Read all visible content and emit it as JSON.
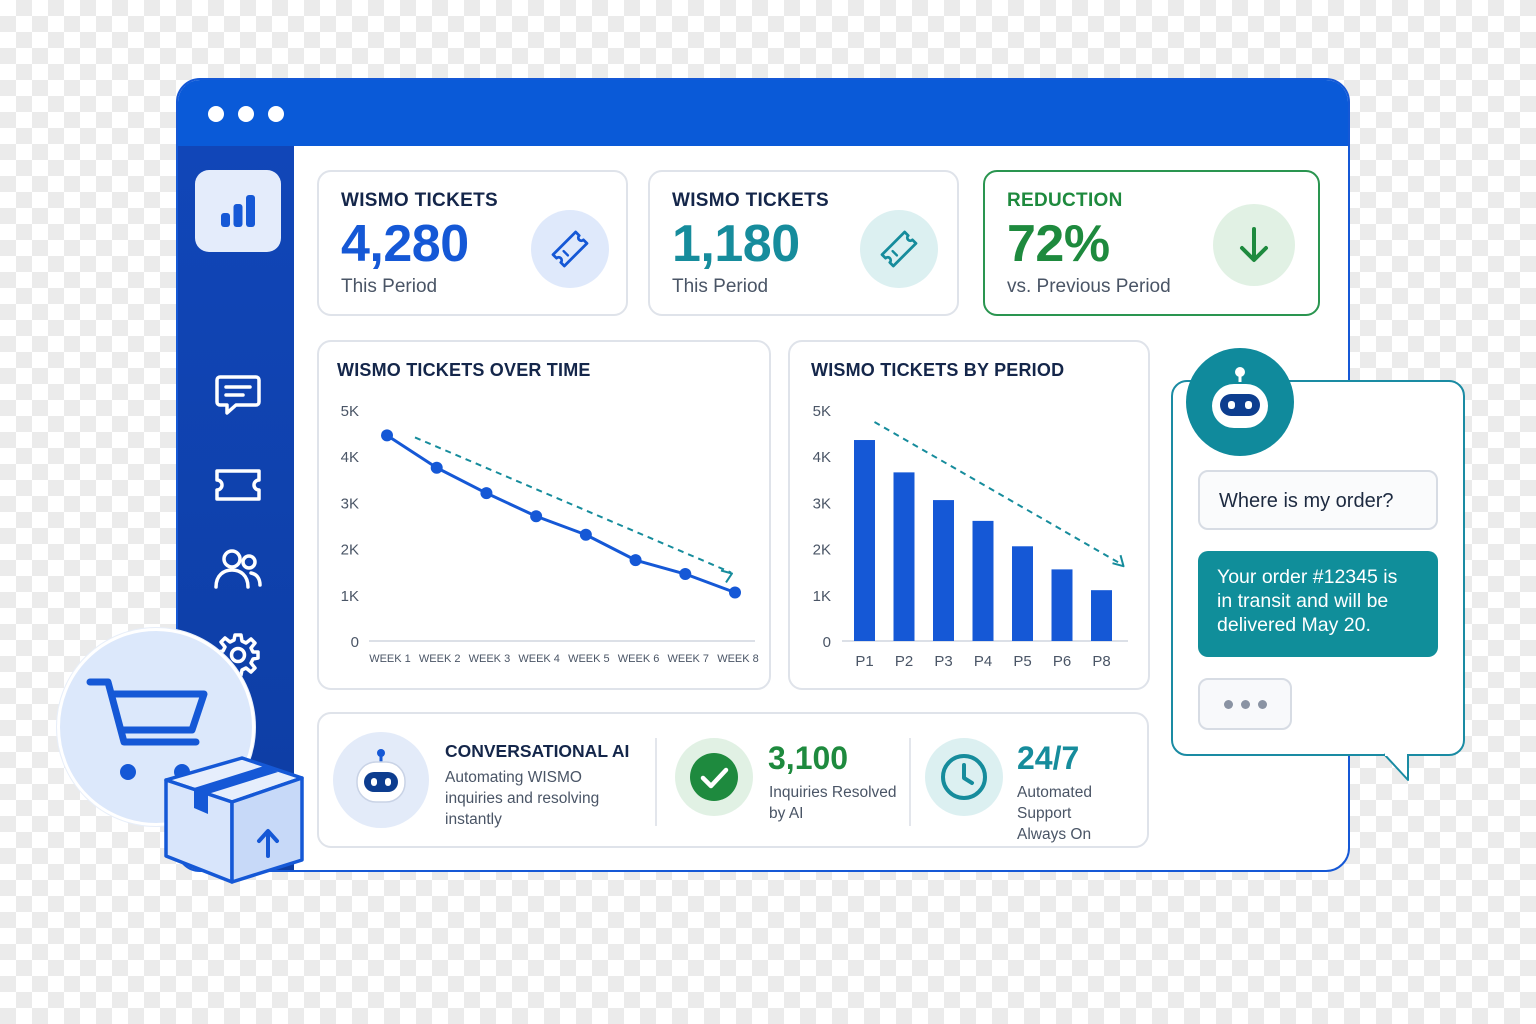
{
  "stats": [
    {
      "label": "WISMO TICKETS",
      "value": "4,280",
      "sub": "This Period",
      "icon": "ticket-icon",
      "color": "#1558d6"
    },
    {
      "label": "WISMO TICKETS",
      "value": "1,180",
      "sub": "This Period",
      "icon": "ticket-icon",
      "color": "#168c9c"
    },
    {
      "label": "REDUCTION",
      "value": "72%",
      "sub": "vs. Previous Period",
      "icon": "arrow-down-icon",
      "color": "#1e8a3e"
    }
  ],
  "sidebar": {
    "items": [
      {
        "icon": "bar-chart-icon",
        "active": true
      },
      {
        "icon": "chat-icon",
        "active": false
      },
      {
        "icon": "ticket-icon",
        "active": false
      },
      {
        "icon": "users-icon",
        "active": false
      },
      {
        "icon": "gear-icon",
        "active": false
      }
    ]
  },
  "chart_data": [
    {
      "type": "line",
      "title": "WISMO TICKETS OVER TIME",
      "categories": [
        "WEEK 1",
        "WEEK 2",
        "WEEK 3",
        "WEEK 4",
        "WEEK 5",
        "WEEK 6",
        "WEEK 7",
        "WEEK 8"
      ],
      "values": [
        4450,
        3750,
        3200,
        2700,
        2300,
        1750,
        1450,
        1050
      ],
      "yticks": [
        "5K",
        "4K",
        "3K",
        "2K",
        "1K",
        "0"
      ],
      "ylim": [
        0,
        5000
      ],
      "trend": true,
      "color": "#1558d6",
      "trend_color": "#168c9c"
    },
    {
      "type": "bar",
      "title": "WISMO TICKETS BY PERIOD",
      "categories": [
        "P1",
        "P2",
        "P3",
        "P4",
        "P5",
        "P6",
        "P8"
      ],
      "values": [
        4350,
        3650,
        3050,
        2600,
        2050,
        1550,
        1100
      ],
      "yticks": [
        "5K",
        "4K",
        "3K",
        "2K",
        "1K",
        "0"
      ],
      "ylim": [
        0,
        5000
      ],
      "trend": true,
      "color": "#1558d6",
      "trend_color": "#168c9c"
    }
  ],
  "summary": {
    "ai_title": "CONVERSATIONAL AI",
    "ai_desc": [
      "Automating WISMO",
      "inquiries and resolving",
      "instantly"
    ],
    "resolved_value": "3,100",
    "resolved_label": [
      "Inquiries Resolved",
      "by AI"
    ],
    "support_value": "24/7",
    "support_label": [
      "Automated Support",
      "Always On"
    ]
  },
  "chat": {
    "user_message": "Where is my order?",
    "bot_message": [
      "Your order #12345 is",
      "in transit and will be",
      "delivered May 20."
    ]
  },
  "colors": {
    "primary": "#1558d6",
    "teal": "#168c9c",
    "green": "#1e8a3e",
    "sidebar": "#1146b8"
  }
}
